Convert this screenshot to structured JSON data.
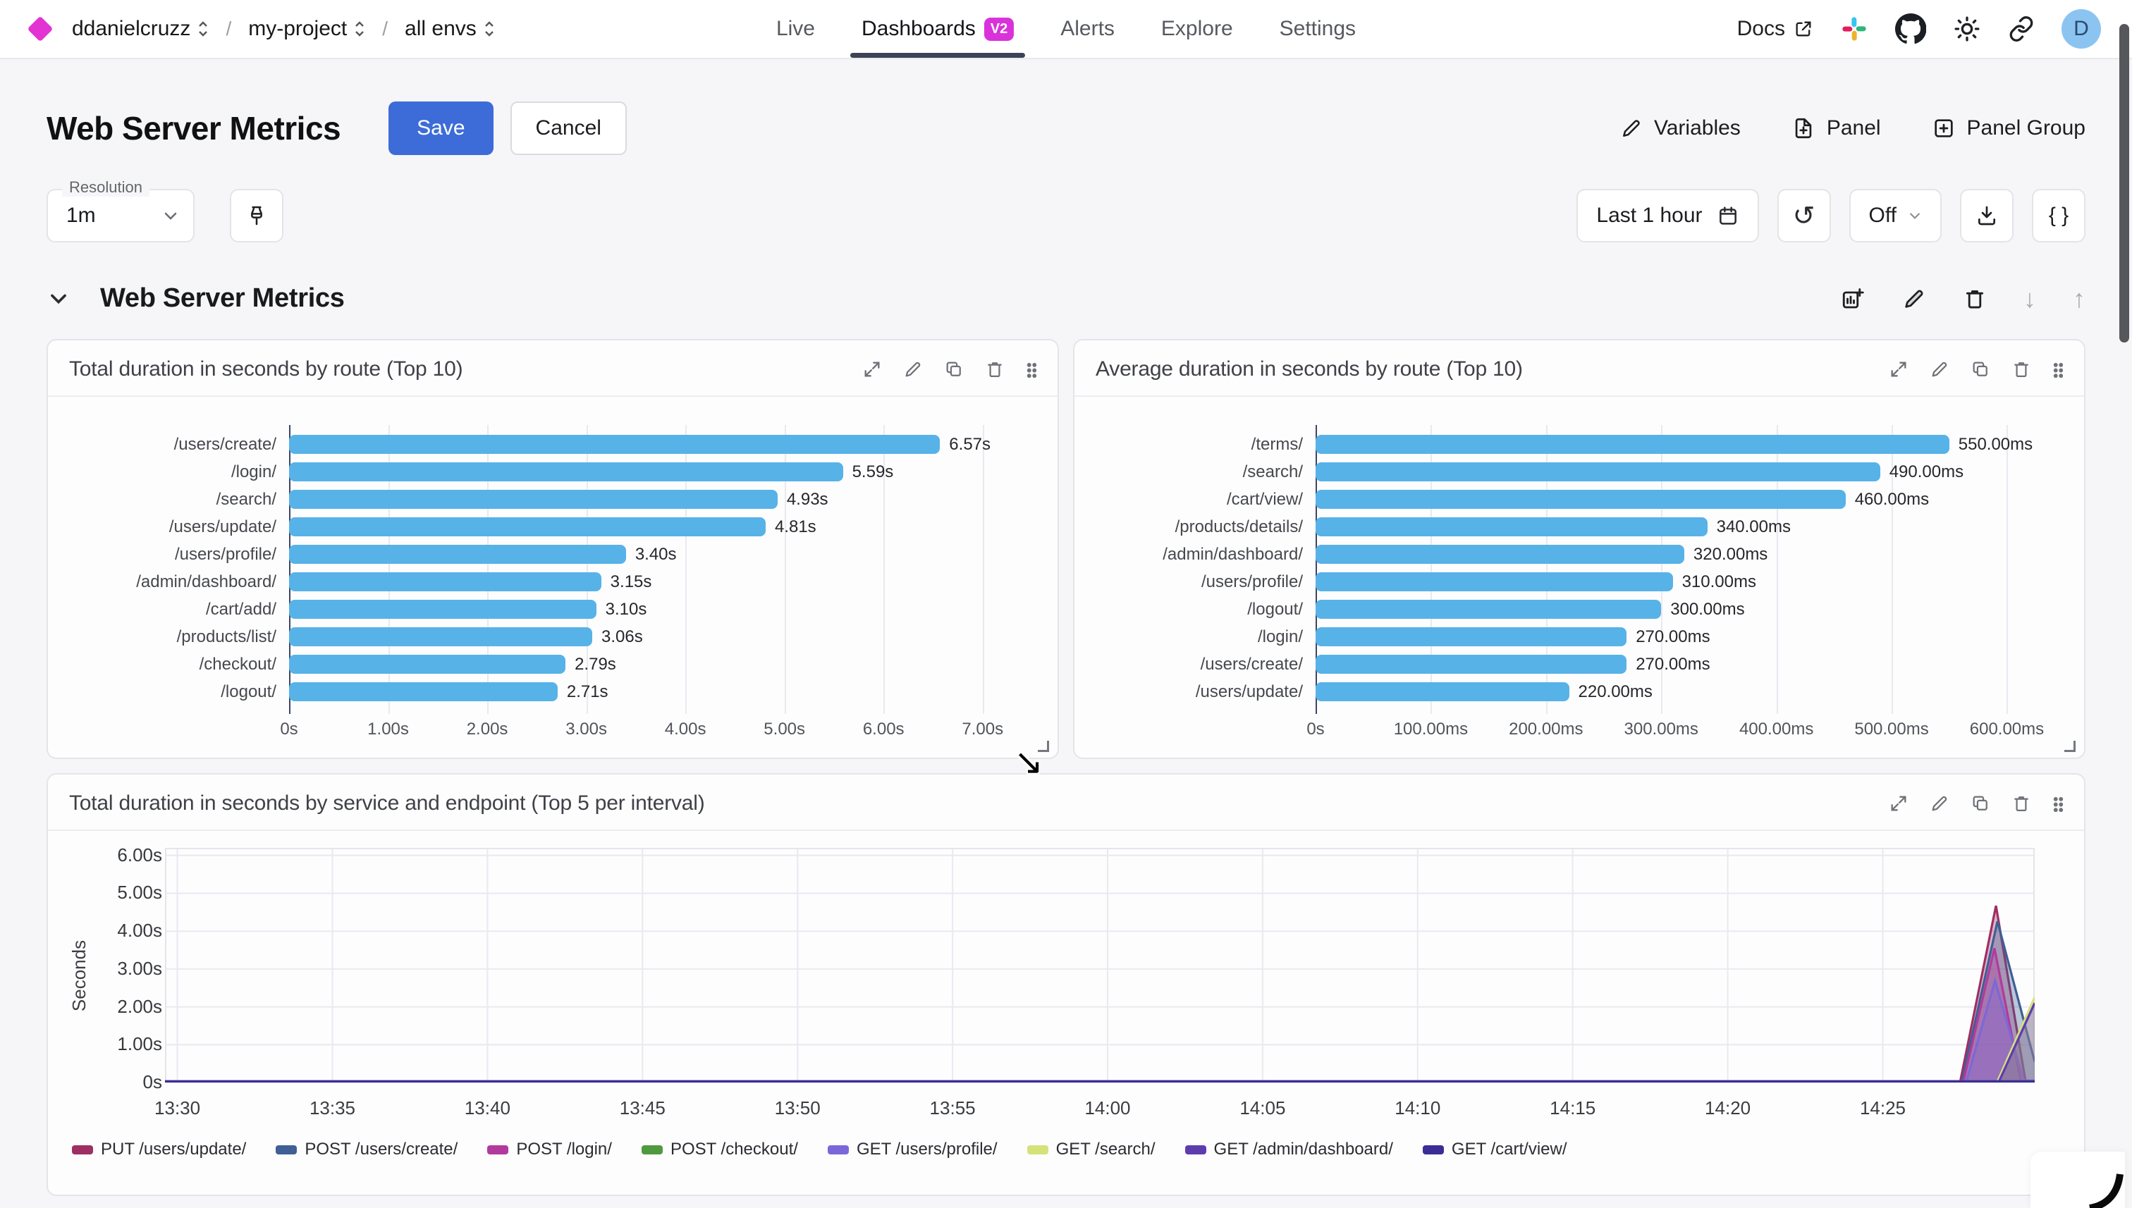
{
  "nav": {
    "breadcrumb": [
      {
        "label": "ddanielcruzz"
      },
      {
        "label": "my-project"
      },
      {
        "label": "all envs"
      }
    ],
    "separator": "/",
    "tabs": [
      {
        "label": "Live",
        "active": false
      },
      {
        "label": "Dashboards",
        "badge": "V2",
        "active": true
      },
      {
        "label": "Alerts",
        "active": false
      },
      {
        "label": "Explore",
        "active": false
      },
      {
        "label": "Settings",
        "active": false
      }
    ],
    "docs_label": "Docs",
    "avatar_initial": "D"
  },
  "header": {
    "title": "Web Server Metrics",
    "save_label": "Save",
    "cancel_label": "Cancel",
    "actions": [
      {
        "label": "Variables"
      },
      {
        "label": "Panel"
      },
      {
        "label": "Panel Group"
      }
    ]
  },
  "toolbar": {
    "resolution_label": "Resolution",
    "resolution_value": "1m",
    "time_range": "Last 1 hour",
    "refresh_value": "Off"
  },
  "section": {
    "title": "Web Server Metrics"
  },
  "icons": {
    "refresh": "↺",
    "braces": "{ }",
    "arrow_down": "↓",
    "arrow_up": "↑",
    "cursor": "↘"
  },
  "colors": {
    "accent_blue": "#3d6cd8",
    "brand_magenta": "#da32da",
    "bar_blue": "#57b2e8"
  },
  "chart_data": [
    {
      "type": "bar",
      "orientation": "horizontal",
      "title": "Total duration in seconds by route (Top 10)",
      "categories": [
        "/users/create/",
        "/login/",
        "/search/",
        "/users/update/",
        "/users/profile/",
        "/admin/dashboard/",
        "/cart/add/",
        "/products/list/",
        "/checkout/",
        "/logout/"
      ],
      "values": [
        6.57,
        5.59,
        4.93,
        4.81,
        3.4,
        3.15,
        3.1,
        3.06,
        2.79,
        2.71
      ],
      "value_labels": [
        "6.57s",
        "5.59s",
        "4.93s",
        "4.81s",
        "3.40s",
        "3.15s",
        "3.10s",
        "3.06s",
        "2.79s",
        "2.71s"
      ],
      "tick_values": [
        0,
        1,
        2,
        3,
        4,
        5,
        6,
        7
      ],
      "tick_labels": [
        "0s",
        "1.00s",
        "2.00s",
        "3.00s",
        "4.00s",
        "5.00s",
        "6.00s",
        "7.00s"
      ],
      "xlim": 7.5,
      "bar_color": "#57b2e8"
    },
    {
      "type": "bar",
      "orientation": "horizontal",
      "title": "Average duration in seconds by route (Top 10)",
      "categories": [
        "/terms/",
        "/search/",
        "/cart/view/",
        "/products/details/",
        "/admin/dashboard/",
        "/users/profile/",
        "/logout/",
        "/login/",
        "/users/create/",
        "/users/update/"
      ],
      "values": [
        550,
        490,
        460,
        340,
        320,
        310,
        300,
        270,
        270,
        220
      ],
      "value_labels": [
        "550.00ms",
        "490.00ms",
        "460.00ms",
        "340.00ms",
        "320.00ms",
        "310.00ms",
        "300.00ms",
        "270.00ms",
        "270.00ms",
        "220.00ms"
      ],
      "tick_values": [
        0,
        100,
        200,
        300,
        400,
        500,
        600
      ],
      "tick_labels": [
        "0s",
        "100.00ms",
        "200.00ms",
        "300.00ms",
        "400.00ms",
        "500.00ms",
        "600.00ms"
      ],
      "xlim": 645,
      "bar_color": "#57b2e8"
    },
    {
      "type": "area",
      "title": "Total duration in seconds by service and endpoint (Top 5 per interval)",
      "ylabel": "Seconds",
      "ymax": 6.2,
      "yticks": [
        {
          "v": 0,
          "label": "0s"
        },
        {
          "v": 1,
          "label": "1.00s"
        },
        {
          "v": 2,
          "label": "2.00s"
        },
        {
          "v": 3,
          "label": "3.00s"
        },
        {
          "v": 4,
          "label": "4.00s"
        },
        {
          "v": 5,
          "label": "5.00s"
        },
        {
          "v": 6,
          "label": "6.00s"
        }
      ],
      "x_domain": [
        29.6,
        89.9
      ],
      "xticks": [
        {
          "t": 30,
          "label": "13:30"
        },
        {
          "t": 35,
          "label": "13:35"
        },
        {
          "t": 40,
          "label": "13:40"
        },
        {
          "t": 45,
          "label": "13:45"
        },
        {
          "t": 50,
          "label": "13:50"
        },
        {
          "t": 55,
          "label": "13:55"
        },
        {
          "t": 60,
          "label": "14:00"
        },
        {
          "t": 65,
          "label": "14:05"
        },
        {
          "t": 70,
          "label": "14:10"
        },
        {
          "t": 75,
          "label": "14:15"
        },
        {
          "t": 80,
          "label": "14:20"
        },
        {
          "t": 85,
          "label": "14:25"
        }
      ],
      "series": [
        {
          "name": "PUT /users/update/",
          "color": "#9e2f63",
          "points": [
            [
              29.6,
              0.035
            ],
            [
              87.5,
              0.035
            ],
            [
              88.65,
              4.67
            ],
            [
              89.6,
              0.05
            ],
            [
              89.9,
              0.05
            ]
          ]
        },
        {
          "name": "POST /users/create/",
          "color": "#3f5f95",
          "points": [
            [
              29.6,
              0.035
            ],
            [
              87.55,
              0.035
            ],
            [
              88.7,
              4.26
            ],
            [
              89.9,
              0.55
            ]
          ]
        },
        {
          "name": "POST /login/",
          "color": "#b23a9c",
          "points": [
            [
              29.6,
              0.035
            ],
            [
              87.6,
              0.035
            ],
            [
              88.6,
              3.55
            ],
            [
              89.45,
              0.05
            ],
            [
              89.9,
              0.05
            ]
          ]
        },
        {
          "name": "POST /checkout/",
          "color": "#4f9a3e",
          "points": [
            [
              29.6,
              0.035
            ],
            [
              89.9,
              0.035
            ]
          ]
        },
        {
          "name": "GET /users/profile/",
          "color": "#7b68d8",
          "points": [
            [
              29.6,
              0.035
            ],
            [
              87.7,
              0.035
            ],
            [
              88.62,
              2.69
            ],
            [
              89.55,
              0.05
            ],
            [
              89.9,
              0.05
            ]
          ]
        },
        {
          "name": "GET /search/",
          "color": "#d5e27a",
          "points": [
            [
              29.6,
              0.03
            ],
            [
              88.7,
              0.03
            ],
            [
              89.9,
              2.25
            ]
          ]
        },
        {
          "name": "GET /admin/dashboard/",
          "color": "#5d3cae",
          "points": [
            [
              29.6,
              0.03
            ],
            [
              88.75,
              0.03
            ],
            [
              89.9,
              2.1
            ]
          ]
        },
        {
          "name": "GET /cart/view/",
          "color": "#3a2d96",
          "points": [
            [
              29.6,
              0.03
            ],
            [
              89.9,
              0.03
            ]
          ]
        }
      ]
    }
  ]
}
